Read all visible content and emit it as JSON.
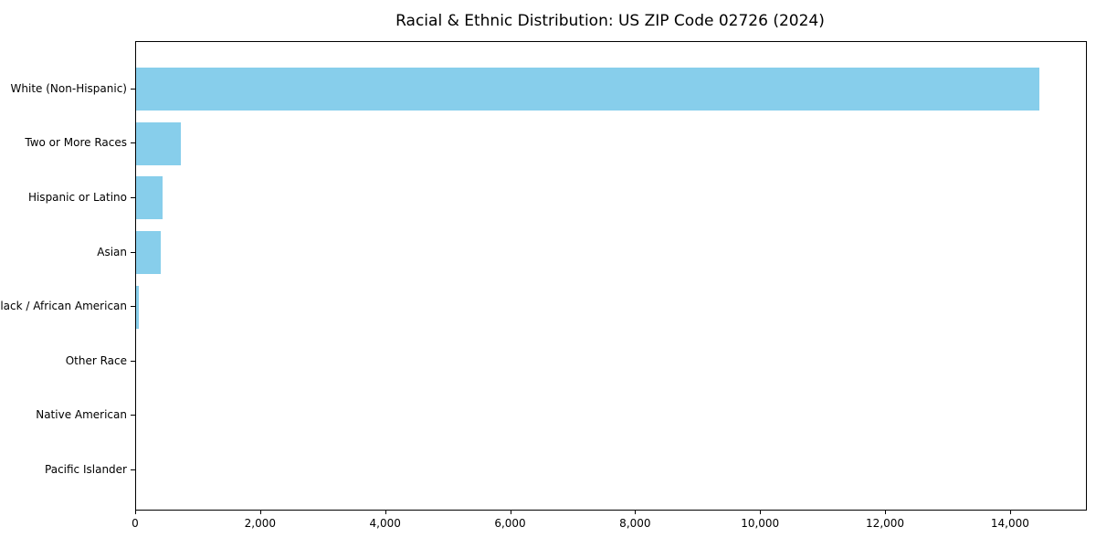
{
  "page": {
    "background_color": "#FFFFFF"
  },
  "chart_data": {
    "type": "bar",
    "orientation": "horizontal",
    "title": "Racial & Ethnic Distribution: US ZIP Code 02726 (2024)",
    "categories": [
      "White (Non-Hispanic)",
      "Two or More Races",
      "Hispanic or Latino",
      "Asian",
      "Black / African American",
      "Other Race",
      "Native American",
      "Pacific Islander"
    ],
    "values": [
      14450,
      710,
      430,
      395,
      45,
      0,
      0,
      0
    ],
    "xlabel": "",
    "ylabel": "",
    "xlim": [
      0,
      15200
    ],
    "xticks": [
      0,
      2000,
      4000,
      6000,
      8000,
      10000,
      12000,
      14000
    ],
    "xtick_labels": [
      "0",
      "2,000",
      "4,000",
      "6,000",
      "8,000",
      "10,000",
      "12,000",
      "14,000"
    ],
    "grid": false,
    "legend": false,
    "bar_color": "#87CEEB",
    "axis_color": "#000000",
    "text_color": "#000000"
  }
}
